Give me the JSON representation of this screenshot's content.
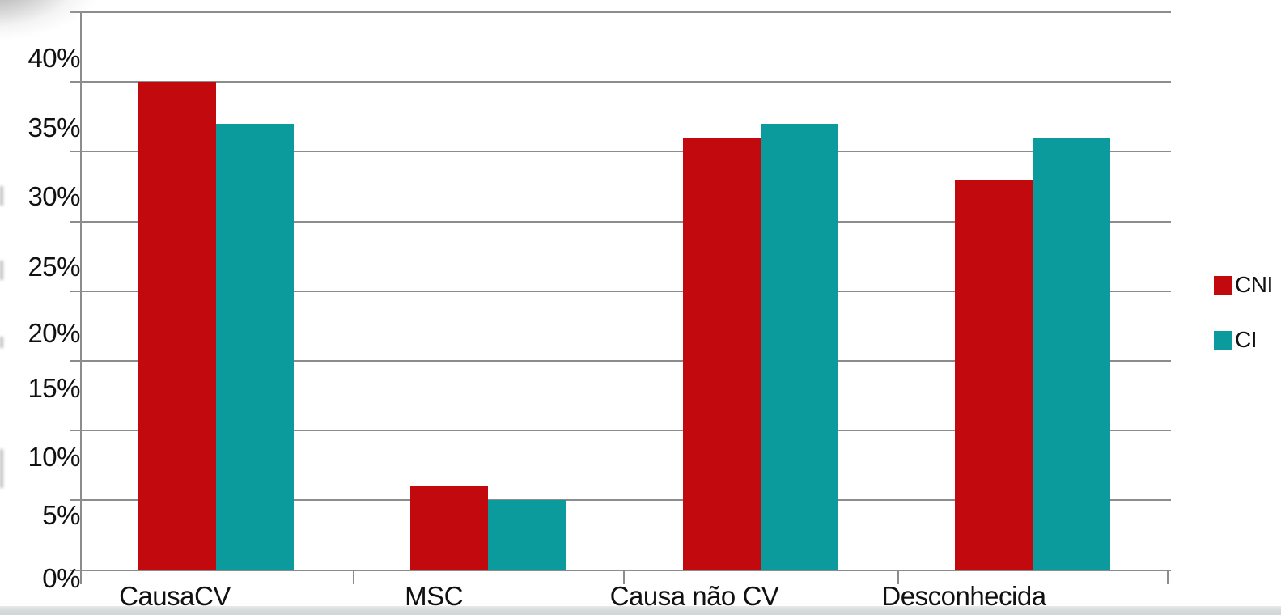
{
  "chart_data": {
    "type": "bar",
    "title": "",
    "categories": [
      "CausaCV",
      "MSC",
      "Causa não CV",
      "Desconhecida"
    ],
    "series": [
      {
        "name": "CNI",
        "color": "#c20a0e",
        "values": [
          35,
          6,
          31,
          28
        ]
      },
      {
        "name": "CI",
        "color": "#0c9b9d",
        "values": [
          32,
          5,
          32,
          31
        ]
      }
    ],
    "y_ticks": [
      "0%",
      "5%",
      "10%",
      "15%",
      "20%",
      "25%",
      "30%",
      "35%",
      "40%"
    ],
    "ylim": [
      0,
      40
    ],
    "y_step": 5,
    "unit": "%",
    "grid": true,
    "legend_position": "right"
  },
  "colors": {
    "grid": "#8c8c8c",
    "text": "#111111",
    "background": "#ffffff",
    "page_edge": "#d5d8d8"
  }
}
